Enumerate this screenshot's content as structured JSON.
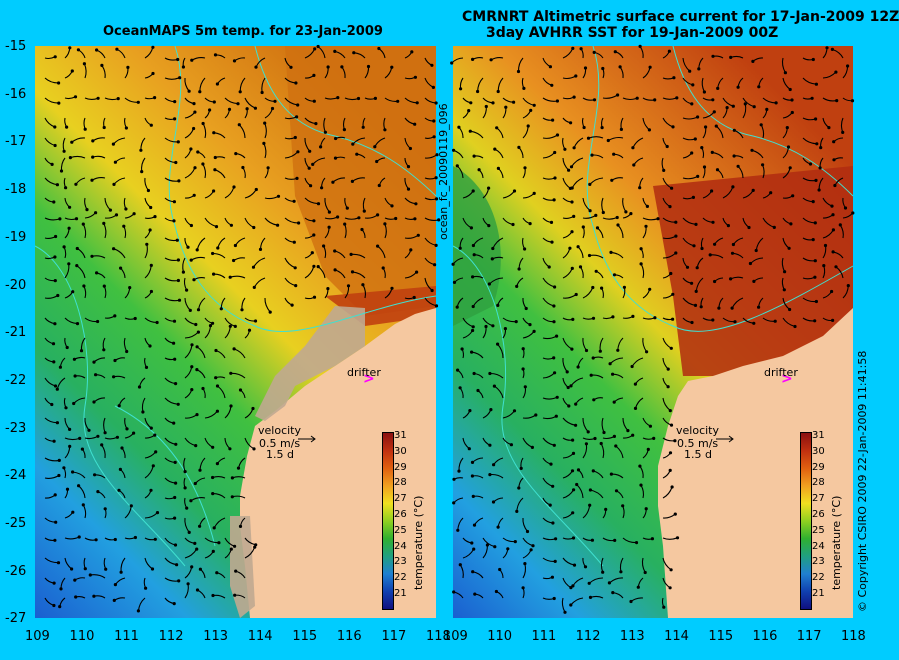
{
  "panels": [
    {
      "id": "left",
      "title": "OceanMAPS 5m temp. for 23-Jan-2009",
      "drifter_label": "drifter",
      "velocity_label": "velocity",
      "velocity_scale": "0.5 m/s",
      "velocity_days": "1.5 d",
      "colorbar_title": "temperature (°C)"
    },
    {
      "id": "right",
      "title_line1": "CMRNRT Altimetric surface current for 17-Jan-2009 12Z",
      "title_line2": "3day AVHRR SST for 19-Jan-2009 00Z",
      "drifter_label": "drifter",
      "velocity_label": "velocity",
      "velocity_scale": "0.5 m/s",
      "velocity_days": "1.5 d",
      "colorbar_title": "temperature (°C)"
    }
  ],
  "axes": {
    "lat_ticks": [
      "-15",
      "-16",
      "-17",
      "-18",
      "-19",
      "-20",
      "-21",
      "-22",
      "-23",
      "-24",
      "-25",
      "-26",
      "-27"
    ],
    "lon_ticks_left": [
      "109",
      "110",
      "111",
      "112",
      "113",
      "114",
      "115",
      "116",
      "117",
      "118"
    ],
    "lon_ticks_right": [
      "109",
      "110",
      "111",
      "112",
      "113",
      "114",
      "115",
      "116",
      "117",
      "118"
    ],
    "lat_range": [
      -27,
      -15
    ],
    "lon_range": [
      109,
      118
    ]
  },
  "colorbar": {
    "ticks": [
      "31",
      "30",
      "29",
      "28",
      "27",
      "26",
      "25",
      "24",
      "23",
      "22",
      "21"
    ],
    "range": [
      20,
      31
    ]
  },
  "side_labels": {
    "run_id": "ocean_fc_20090119_096",
    "copyright": "© Copyright CSIRO 2009   22-Jan-2009 11:41:58"
  },
  "colors": {
    "background": "#00ccff",
    "land": "#f5c8a0",
    "coast_contour": "#40e0d0",
    "arrow": "#000000",
    "drifter": "#ff00ff"
  }
}
